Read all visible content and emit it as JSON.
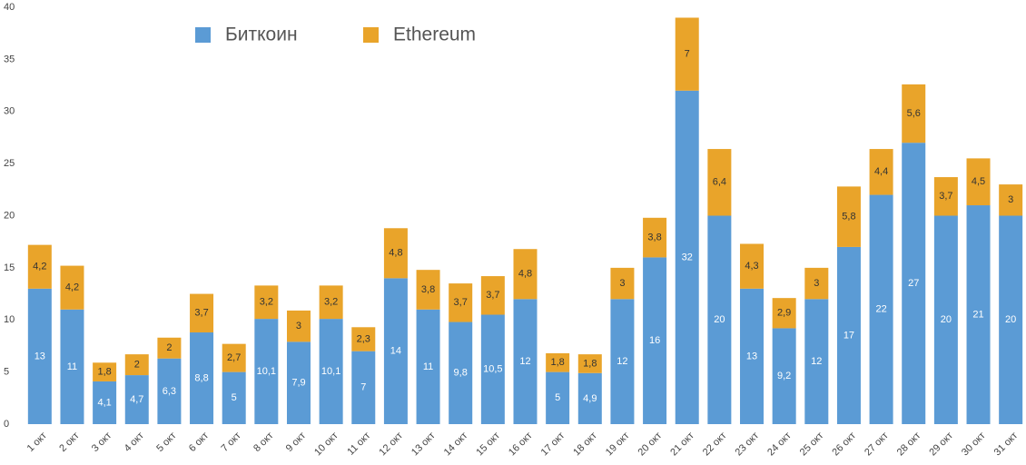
{
  "chart_data": {
    "type": "stacked_bar",
    "categories": [
      "1 окт",
      "2 окт",
      "3 окт",
      "4 окт",
      "5 окт",
      "6 окт",
      "7 окт",
      "8 окт",
      "9 окт",
      "10 окт",
      "11 окт",
      "12 окт",
      "13 окт",
      "14 окт",
      "15 окт",
      "16 окт",
      "17 окт",
      "18 окт",
      "19 окт",
      "20 окт",
      "21 окт",
      "22 окт",
      "23 окт",
      "24 окт",
      "25 окт",
      "26 окт",
      "27 окт",
      "28 окт",
      "29 окт",
      "30 окт",
      "31 окт"
    ],
    "series": [
      {
        "name": "Биткоин",
        "color": "#5b9bd5",
        "values": [
          13,
          11,
          4.1,
          4.7,
          6.3,
          8.8,
          5,
          10.1,
          7.9,
          10.1,
          7,
          14,
          11,
          9.8,
          10.5,
          12,
          5,
          4.9,
          12,
          16,
          32,
          20,
          13,
          9.2,
          12,
          17,
          22,
          27,
          20,
          21,
          20
        ],
        "value_labels": [
          "13",
          "11",
          "4,1",
          "4,7",
          "6,3",
          "8,8",
          "5",
          "10,1",
          "7,9",
          "10,1",
          "7",
          "14",
          "11",
          "9,8",
          "10,5",
          "12",
          "5",
          "4,9",
          "12",
          "16",
          "32",
          "20",
          "13",
          "9,2",
          "12",
          "17",
          "22",
          "27",
          "20",
          "21",
          "20"
        ]
      },
      {
        "name": "Ethereum",
        "color": "#e9a42a",
        "values": [
          4.2,
          4.2,
          1.8,
          2,
          2,
          3.7,
          2.7,
          3.2,
          3,
          3.2,
          2.3,
          4.8,
          3.8,
          3.7,
          3.7,
          4.8,
          1.8,
          1.8,
          3,
          3.8,
          7,
          6.4,
          4.3,
          2.9,
          3,
          5.8,
          4.4,
          5.6,
          3.7,
          4.5,
          3
        ],
        "value_labels": [
          "4,2",
          "4,2",
          "1,8",
          "2",
          "2",
          "3,7",
          "2,7",
          "3,2",
          "3",
          "3,2",
          "2,3",
          "4,8",
          "3,8",
          "3,7",
          "3,7",
          "4,8",
          "1,8",
          "1,8",
          "3",
          "3,8",
          "7",
          "6,4",
          "4,3",
          "2,9",
          "3",
          "5,8",
          "4,4",
          "5,6",
          "3,7",
          "4,5",
          "3"
        ]
      }
    ],
    "ylim": [
      0,
      40
    ],
    "yticks": [
      0,
      5,
      10,
      15,
      20,
      25,
      30,
      35,
      40
    ],
    "grid": false
  }
}
